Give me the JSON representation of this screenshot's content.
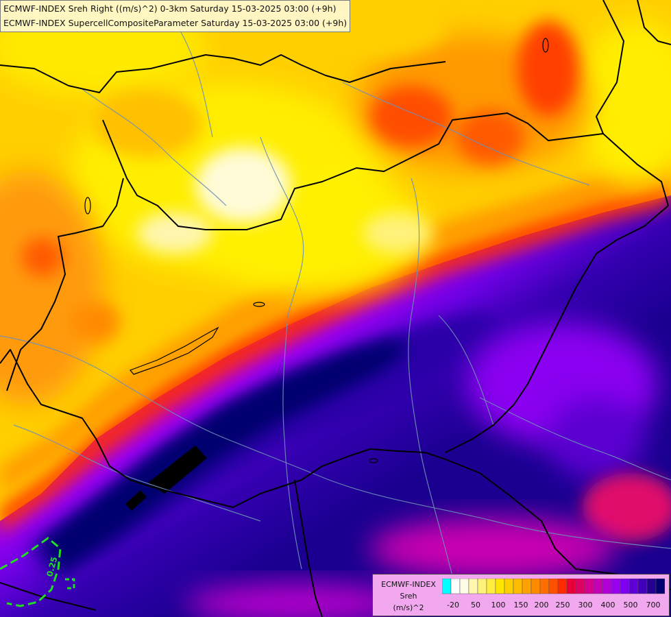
{
  "titles": {
    "line1": "ECMWF-INDEX Sreh Right ((m/s)^2) 0-3km Saturday 15-03-2025 03:00 (+9h)",
    "line2": "ECMWF-INDEX SupercellCompositeParameter Saturday 15-03-2025 03:00 (+9h)"
  },
  "contour_label": "0.25",
  "legend": {
    "line1": "ECMWF-INDEX",
    "line2": "Sreh",
    "line3": "(m/s)^2",
    "colors": [
      "#00ffff",
      "#ffffff",
      "#fffbe6",
      "#fff6b0",
      "#fff27a",
      "#ffee40",
      "#ffe600",
      "#ffd000",
      "#ffbb00",
      "#ffa200",
      "#ff8a00",
      "#ff6e00",
      "#ff5000",
      "#ff2a00",
      "#e8003a",
      "#e00064",
      "#d4008e",
      "#c400b4",
      "#b000d6",
      "#9a00f0",
      "#7e00f0",
      "#6000d8",
      "#4000b8",
      "#240090",
      "#000070"
    ],
    "ticks": [
      "-20",
      "50",
      "100",
      "150",
      "200",
      "250",
      "300",
      "400",
      "500",
      "700"
    ]
  },
  "colors": {
    "deep_navy": "#000070",
    "indigo": "#3a00b0",
    "violet": "#7a00e8",
    "purple": "#a000f0",
    "magenta": "#d000c0",
    "red": "#ff1a00",
    "orange": "#ff8c1a",
    "yellow": "#ffee00",
    "pale": "#fffcd8",
    "border": "#000000",
    "river": "#6f8fb8",
    "contour": "#22dd22"
  }
}
